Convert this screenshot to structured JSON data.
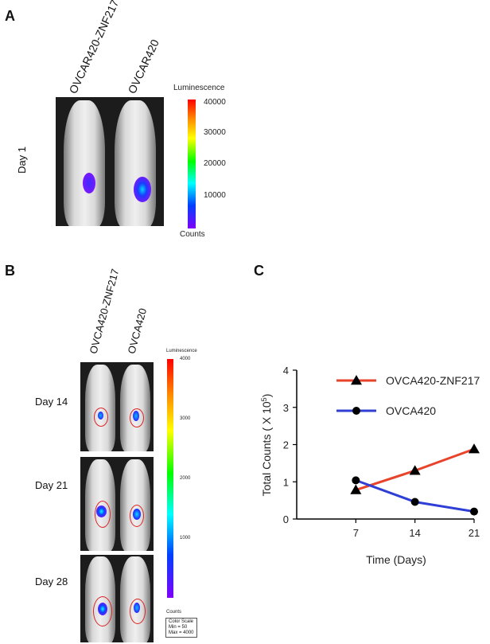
{
  "panels": {
    "a": {
      "letter": "A",
      "columns": [
        "OVCAR420-ZNF217",
        "OVCAR420"
      ],
      "day_label": "Day 1",
      "colorbar": {
        "title": "Luminescence",
        "ticks": [
          "40000",
          "30000",
          "20000",
          "10000"
        ],
        "bottom_label": "Counts"
      }
    },
    "b": {
      "letter": "B",
      "columns": [
        "OVCA420-ZNF217",
        "OVCA420"
      ],
      "days": [
        "Day 14",
        "Day 21",
        "Day 28"
      ],
      "colorbar": {
        "title": "Luminescence",
        "ticks": [
          "4000",
          "3000",
          "2000",
          "1000"
        ],
        "bottom_label": "Counts",
        "scale_lines": [
          "Color Scale",
          "Min = 50",
          "Max = 4000"
        ]
      }
    },
    "c": {
      "letter": "C"
    }
  },
  "chart_data": {
    "type": "line",
    "x": [
      7,
      14,
      21
    ],
    "xlabel": "Time (Days)",
    "ylabel_main": "Total Counts ( X 10",
    "ylabel_sup": "5",
    "ylabel_end": ")",
    "xlim": [
      0,
      21
    ],
    "ylim": [
      0,
      4
    ],
    "xticks": [
      7,
      14,
      21
    ],
    "yticks": [
      0,
      1,
      2,
      3,
      4
    ],
    "legend_position": "top-right",
    "series": [
      {
        "name": "OVCA420-ZNF217",
        "values": [
          0.78,
          1.3,
          1.88
        ],
        "color": "#e8432b",
        "marker": "triangle"
      },
      {
        "name": "OVCA420",
        "values": [
          1.04,
          0.46,
          0.2
        ],
        "color": "#2f3fd6",
        "marker": "circle"
      }
    ]
  }
}
